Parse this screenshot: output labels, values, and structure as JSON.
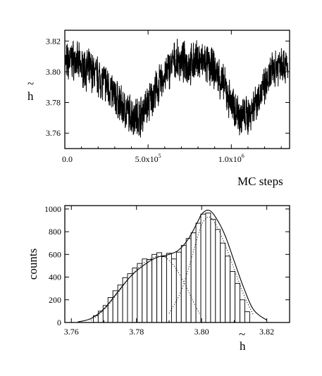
{
  "chart_data": [
    {
      "type": "line",
      "title": "",
      "xlabel": "MC steps",
      "ylabel": "h",
      "ylabel_accent": "~",
      "xlim": [
        0,
        1350000
      ],
      "ylim": [
        3.75,
        3.827
      ],
      "yticks": [
        3.76,
        3.78,
        3.8,
        3.82
      ],
      "ytick_labels": [
        "3.76",
        "3.78",
        "3.80",
        "3.82"
      ],
      "xticks": [
        0,
        500000,
        1000000
      ],
      "xtick_labels": [
        {
          "base": "0.0",
          "exp": ""
        },
        {
          "base": "5.0x10",
          "exp": "5"
        },
        {
          "base": "1.0x10",
          "exp": "6"
        }
      ],
      "grid": false,
      "series": [
        {
          "color": "#000000",
          "x": [
            0,
            50000,
            100000,
            150000,
            200000,
            250000,
            300000,
            350000,
            400000,
            450000,
            500000,
            550000,
            600000,
            650000,
            700000,
            750000,
            800000,
            850000,
            900000,
            950000,
            1000000,
            1050000,
            1100000,
            1150000,
            1200000,
            1250000,
            1300000,
            1340000
          ],
          "y": [
            3.805,
            3.808,
            3.803,
            3.801,
            3.797,
            3.792,
            3.784,
            3.776,
            3.772,
            3.771,
            3.779,
            3.788,
            3.797,
            3.806,
            3.807,
            3.804,
            3.808,
            3.805,
            3.801,
            3.792,
            3.779,
            3.772,
            3.771,
            3.782,
            3.789,
            3.801,
            3.807,
            3.802
          ]
        }
      ]
    },
    {
      "type": "bar",
      "title": "",
      "xlabel": "h",
      "xlabel_accent": "~",
      "ylabel": "counts",
      "xlim": [
        3.758,
        3.827
      ],
      "ylim": [
        0,
        1030
      ],
      "yticks": [
        0,
        200,
        400,
        600,
        800,
        1000
      ],
      "ytick_labels": [
        "0",
        "200",
        "400",
        "600",
        "800",
        "1000"
      ],
      "xticks": [
        3.76,
        3.78,
        3.8,
        3.82
      ],
      "xtick_labels": [
        "3.76",
        "3.78",
        "3.80",
        "3.82"
      ],
      "grid": false,
      "bin_width": 0.0015,
      "bins": [
        {
          "x": 3.7675,
          "count": 60
        },
        {
          "x": 3.769,
          "count": 100
        },
        {
          "x": 3.7705,
          "count": 150
        },
        {
          "x": 3.772,
          "count": 220
        },
        {
          "x": 3.7735,
          "count": 280
        },
        {
          "x": 3.775,
          "count": 330
        },
        {
          "x": 3.7765,
          "count": 395
        },
        {
          "x": 3.778,
          "count": 430
        },
        {
          "x": 3.7795,
          "count": 480
        },
        {
          "x": 3.781,
          "count": 520
        },
        {
          "x": 3.7825,
          "count": 560
        },
        {
          "x": 3.784,
          "count": 555
        },
        {
          "x": 3.7855,
          "count": 600
        },
        {
          "x": 3.787,
          "count": 615
        },
        {
          "x": 3.7885,
          "count": 580
        },
        {
          "x": 3.79,
          "count": 610
        },
        {
          "x": 3.7915,
          "count": 560
        },
        {
          "x": 3.793,
          "count": 620
        },
        {
          "x": 3.7945,
          "count": 680
        },
        {
          "x": 3.796,
          "count": 740
        },
        {
          "x": 3.7975,
          "count": 790
        },
        {
          "x": 3.799,
          "count": 875
        },
        {
          "x": 3.8005,
          "count": 955
        },
        {
          "x": 3.802,
          "count": 965
        },
        {
          "x": 3.8035,
          "count": 910
        },
        {
          "x": 3.805,
          "count": 820
        },
        {
          "x": 3.8065,
          "count": 700
        },
        {
          "x": 3.808,
          "count": 585
        },
        {
          "x": 3.8095,
          "count": 450
        },
        {
          "x": 3.811,
          "count": 345
        },
        {
          "x": 3.8125,
          "count": 200
        },
        {
          "x": 3.814,
          "count": 95
        }
      ],
      "fit_curve": {
        "x": [
          3.762,
          3.766,
          3.77,
          3.774,
          3.778,
          3.782,
          3.786,
          3.79,
          3.793,
          3.796,
          3.799,
          3.8,
          3.802,
          3.804,
          3.807,
          3.81,
          3.813,
          3.816,
          3.82
        ],
        "y": [
          5,
          35,
          120,
          260,
          400,
          500,
          570,
          600,
          640,
          740,
          900,
          955,
          990,
          940,
          780,
          540,
          300,
          110,
          20
        ]
      },
      "component_1": {
        "x": [
          3.766,
          3.77,
          3.774,
          3.778,
          3.782,
          3.786,
          3.789,
          3.792,
          3.795,
          3.798,
          3.8
        ],
        "y": [
          20,
          110,
          250,
          400,
          520,
          580,
          570,
          480,
          330,
          150,
          50
        ]
      },
      "component_2": {
        "x": [
          3.79,
          3.794,
          3.798,
          3.8,
          3.802,
          3.804,
          3.807,
          3.81,
          3.813,
          3.816
        ],
        "y": [
          80,
          300,
          680,
          860,
          930,
          880,
          700,
          470,
          240,
          60
        ]
      }
    }
  ]
}
